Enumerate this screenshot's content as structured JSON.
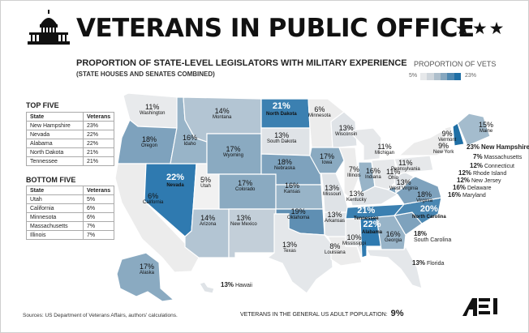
{
  "header": {
    "title": "VETERANS IN PUBLIC OFFICE",
    "stars": "★★★",
    "subtitle": "PROPORTION OF STATE-LEVEL LEGISLATORS WITH MILITARY EXPERIENCE",
    "subtitle2": "(STATE HOUSES AND SENATES COMBINED)"
  },
  "legend": {
    "title": "PROPORTION OF VETS",
    "min": "5%",
    "max": "23%",
    "colors": [
      "#e6e8ea",
      "#cfd6dc",
      "#aebfcc",
      "#86a7bf",
      "#4f88b0",
      "#1f6fa5"
    ]
  },
  "top_five": {
    "title": "TOP FIVE",
    "headers": [
      "State",
      "Veterans"
    ],
    "rows": [
      [
        "New Hampshire",
        "23%"
      ],
      [
        "Nevada",
        "22%"
      ],
      [
        "Alabama",
        "22%"
      ],
      [
        "North Dakota",
        "21%"
      ],
      [
        "Tennessee",
        "21%"
      ]
    ]
  },
  "bottom_five": {
    "title": "BOTTOM FIVE",
    "headers": [
      "State",
      "Veterans"
    ],
    "rows": [
      [
        "Utah",
        "5%"
      ],
      [
        "California",
        "6%"
      ],
      [
        "Minnesota",
        "6%"
      ],
      [
        "Massachusetts",
        "7%"
      ],
      [
        "Illinois",
        "7%"
      ]
    ]
  },
  "states": {
    "WA": {
      "name": "Washington",
      "pct": "11%",
      "color": "#e8eaec"
    },
    "OR": {
      "name": "Oregon",
      "pct": "18%",
      "color": "#7ea2bd"
    },
    "CA": {
      "name": "California",
      "pct": "6%",
      "color": "#ececec"
    },
    "NV": {
      "name": "Nevada",
      "pct": "22%",
      "color": "#2f7ab0"
    },
    "ID": {
      "name": "Idaho",
      "pct": "16%",
      "color": "#98b4c8"
    },
    "MT": {
      "name": "Montana",
      "pct": "14%",
      "color": "#b3c5d3"
    },
    "WY": {
      "name": "Wyoming",
      "pct": "17%",
      "color": "#8aaac1"
    },
    "UT": {
      "name": "Utah",
      "pct": "5%",
      "color": "#f1f1f1"
    },
    "AZ": {
      "name": "Arizona",
      "pct": "14%",
      "color": "#b3c5d3"
    },
    "CO": {
      "name": "Colorado",
      "pct": "17%",
      "color": "#8aaac1"
    },
    "NM": {
      "name": "New Mexico",
      "pct": "13%",
      "color": "#c3cfd9"
    },
    "ND": {
      "name": "North Dakota",
      "pct": "21%",
      "color": "#3b80b1"
    },
    "SD": {
      "name": "South Dakota",
      "pct": "13%",
      "color": "#dfe3e7"
    },
    "NE": {
      "name": "Nebraska",
      "pct": "18%",
      "color": "#7ea2bd"
    },
    "KS": {
      "name": "Kansas",
      "pct": "16%",
      "color": "#98b4c8"
    },
    "OK": {
      "name": "Oklahoma",
      "pct": "19%",
      "color": "#5f8fb3"
    },
    "TX": {
      "name": "Texas",
      "pct": "13%",
      "color": "#e4e7ea"
    },
    "MN": {
      "name": "Minnesota",
      "pct": "6%",
      "color": "#ececec"
    },
    "IA": {
      "name": "Iowa",
      "pct": "17%",
      "color": "#8aaac1"
    },
    "MO": {
      "name": "Missouri",
      "pct": "13%",
      "color": "#dfe3e7"
    },
    "AR": {
      "name": "Arkansas",
      "pct": "13%",
      "color": "#dfe3e7"
    },
    "LA": {
      "name": "Louisiana",
      "pct": "8%",
      "color": "#ececec"
    },
    "WI": {
      "name": "Wisconsin",
      "pct": "13%",
      "color": "#dfe3e7"
    },
    "IL": {
      "name": "Illinois",
      "pct": "7%",
      "color": "#ececec"
    },
    "MI": {
      "name": "Michigan",
      "pct": "11%",
      "color": "#e6e8ea"
    },
    "IN": {
      "name": "Indiana",
      "pct": "16%",
      "color": "#98b4c8"
    },
    "OH": {
      "name": "Ohio",
      "pct": "11%",
      "color": "#e6e8ea"
    },
    "KY": {
      "name": "Kentucky",
      "pct": "13%",
      "color": "#dfe3e7"
    },
    "TN": {
      "name": "Tennessee",
      "pct": "21%",
      "color": "#3b80b1"
    },
    "MS": {
      "name": "Mississippi",
      "pct": "10%",
      "color": "#e8eaec"
    },
    "AL": {
      "name": "Alabama",
      "pct": "22%",
      "color": "#2f7ab0"
    },
    "GA": {
      "name": "Georgia",
      "pct": "16%",
      "color": "#98b4c8"
    },
    "FL": {
      "name": "Florida",
      "pct": "13%",
      "color": "#e4e7ea"
    },
    "SC": {
      "name": "South Carolina",
      "pct": "18%",
      "color": "#7ea2bd"
    },
    "NC": {
      "name": "North Carolina",
      "pct": "20%",
      "color": "#4a87b2"
    },
    "VA": {
      "name": "Virginia",
      "pct": "18%",
      "color": "#7ea2bd"
    },
    "WV": {
      "name": "West Virginia",
      "pct": "13%",
      "color": "#dfe3e7"
    },
    "PA": {
      "name": "Pennsylvania",
      "pct": "11%",
      "color": "#e6e8ea"
    },
    "NY": {
      "name": "New York",
      "pct": "9%",
      "color": "#ececec"
    },
    "VT": {
      "name": "Vermont",
      "pct": "9%",
      "color": "#ececec"
    },
    "NH": {
      "name": "New Hampshire",
      "pct": "23%",
      "color": "#1f6fa5"
    },
    "ME": {
      "name": "Maine",
      "pct": "15%",
      "color": "#a4bccd"
    },
    "MA": {
      "name": "Massachusetts",
      "pct": "7%"
    },
    "CT": {
      "name": "Connecticut",
      "pct": "12%"
    },
    "RI": {
      "name": "Rhode Island",
      "pct": "12%"
    },
    "NJ": {
      "name": "New Jersey",
      "pct": "12%"
    },
    "DE": {
      "name": "Delaware",
      "pct": "16%"
    },
    "MD": {
      "name": "Maryland",
      "pct": "16%"
    },
    "AK": {
      "name": "Alaska",
      "pct": "17%",
      "color": "#8aaac1"
    },
    "HI": {
      "name": "Hawaii",
      "pct": "13%",
      "color": "#dfe3e7"
    }
  },
  "footer": {
    "source": "Sources: US Department of Veterans Affairs, authors' calculations.",
    "footnote": "VETERANS IN THE GENERAL US ADULT POPULATION:",
    "footnote_value": "9%",
    "logo_text": "AEI"
  }
}
